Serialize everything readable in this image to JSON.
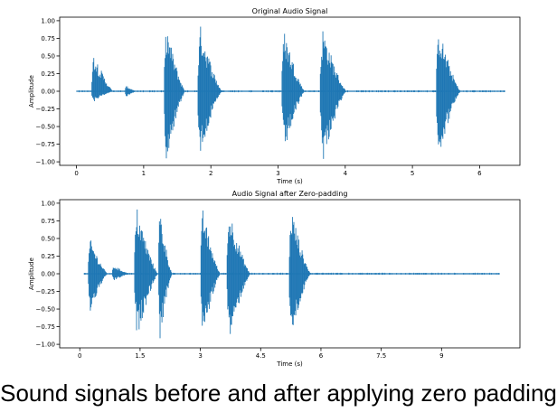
{
  "caption": "Sound signals before and after applying zero padding",
  "chart_data": [
    {
      "type": "line",
      "title": "Original Audio Signal",
      "xlabel": "Time (s)",
      "ylabel": "Amplitude",
      "xlim": [
        -0.25,
        6.6
      ],
      "ylim": [
        -1.05,
        1.05
      ],
      "xticks": [
        0,
        1,
        2,
        3,
        4,
        5,
        6
      ],
      "xtick_labels": [
        "0",
        "1",
        "2",
        "3",
        "4",
        "5",
        "6"
      ],
      "yticks": [
        -1.0,
        -0.75,
        -0.5,
        -0.25,
        0.0,
        0.25,
        0.5,
        0.75,
        1.0
      ],
      "ytick_labels": [
        "−1.00",
        "−0.75",
        "−0.50",
        "−0.25",
        "0.00",
        "0.25",
        "0.50",
        "0.75",
        "1.00"
      ],
      "signal_range": [
        0,
        6.38
      ],
      "color": "#1f77b4",
      "bursts": [
        {
          "start": 0.22,
          "end": 0.55,
          "peak": 0.55,
          "min": -0.15
        },
        {
          "start": 0.72,
          "end": 0.9,
          "peak": 0.08,
          "min": -0.08
        },
        {
          "start": 1.3,
          "end": 1.62,
          "peak": 0.94,
          "min": -0.98
        },
        {
          "start": 1.8,
          "end": 2.17,
          "peak": 0.94,
          "min": -0.9
        },
        {
          "start": 3.05,
          "end": 3.4,
          "peak": 0.88,
          "min": -0.88
        },
        {
          "start": 3.62,
          "end": 4.02,
          "peak": 0.9,
          "min": -1.0
        },
        {
          "start": 5.35,
          "end": 5.72,
          "peak": 0.9,
          "min": -0.92
        }
      ]
    },
    {
      "type": "line",
      "title": "Audio Signal after Zero-padding",
      "xlabel": "Time (s)",
      "ylabel": "Amplitude",
      "xlim": [
        -0.5,
        10.95
      ],
      "ylim": [
        -1.05,
        1.05
      ],
      "xticks": [
        0,
        1.5,
        3,
        4.5,
        6,
        7.5,
        9
      ],
      "xtick_labels": [
        "0",
        "1.5",
        "3",
        "4.5",
        "6",
        "7.5",
        "9"
      ],
      "yticks": [
        -1.0,
        -0.75,
        -0.5,
        -0.25,
        0.0,
        0.25,
        0.5,
        0.75,
        1.0
      ],
      "ytick_labels": [
        "−1.00",
        "−0.75",
        "−0.50",
        "−0.25",
        "0.00",
        "0.25",
        "0.50",
        "0.75",
        "1.00"
      ],
      "signal_range": [
        0.1,
        10.45
      ],
      "color": "#1f77b4",
      "bursts": [
        {
          "start": 0.2,
          "end": 0.7,
          "peak": 0.5,
          "min": -0.55
        },
        {
          "start": 0.8,
          "end": 1.25,
          "peak": 0.12,
          "min": -0.1
        },
        {
          "start": 1.35,
          "end": 1.95,
          "peak": 0.95,
          "min": -0.92
        },
        {
          "start": 1.95,
          "end": 2.3,
          "peak": 0.94,
          "min": -0.95
        },
        {
          "start": 3.0,
          "end": 3.5,
          "peak": 0.92,
          "min": -0.92
        },
        {
          "start": 3.65,
          "end": 4.25,
          "peak": 0.92,
          "min": -0.95
        },
        {
          "start": 5.2,
          "end": 5.75,
          "peak": 0.94,
          "min": -0.9
        }
      ]
    }
  ]
}
